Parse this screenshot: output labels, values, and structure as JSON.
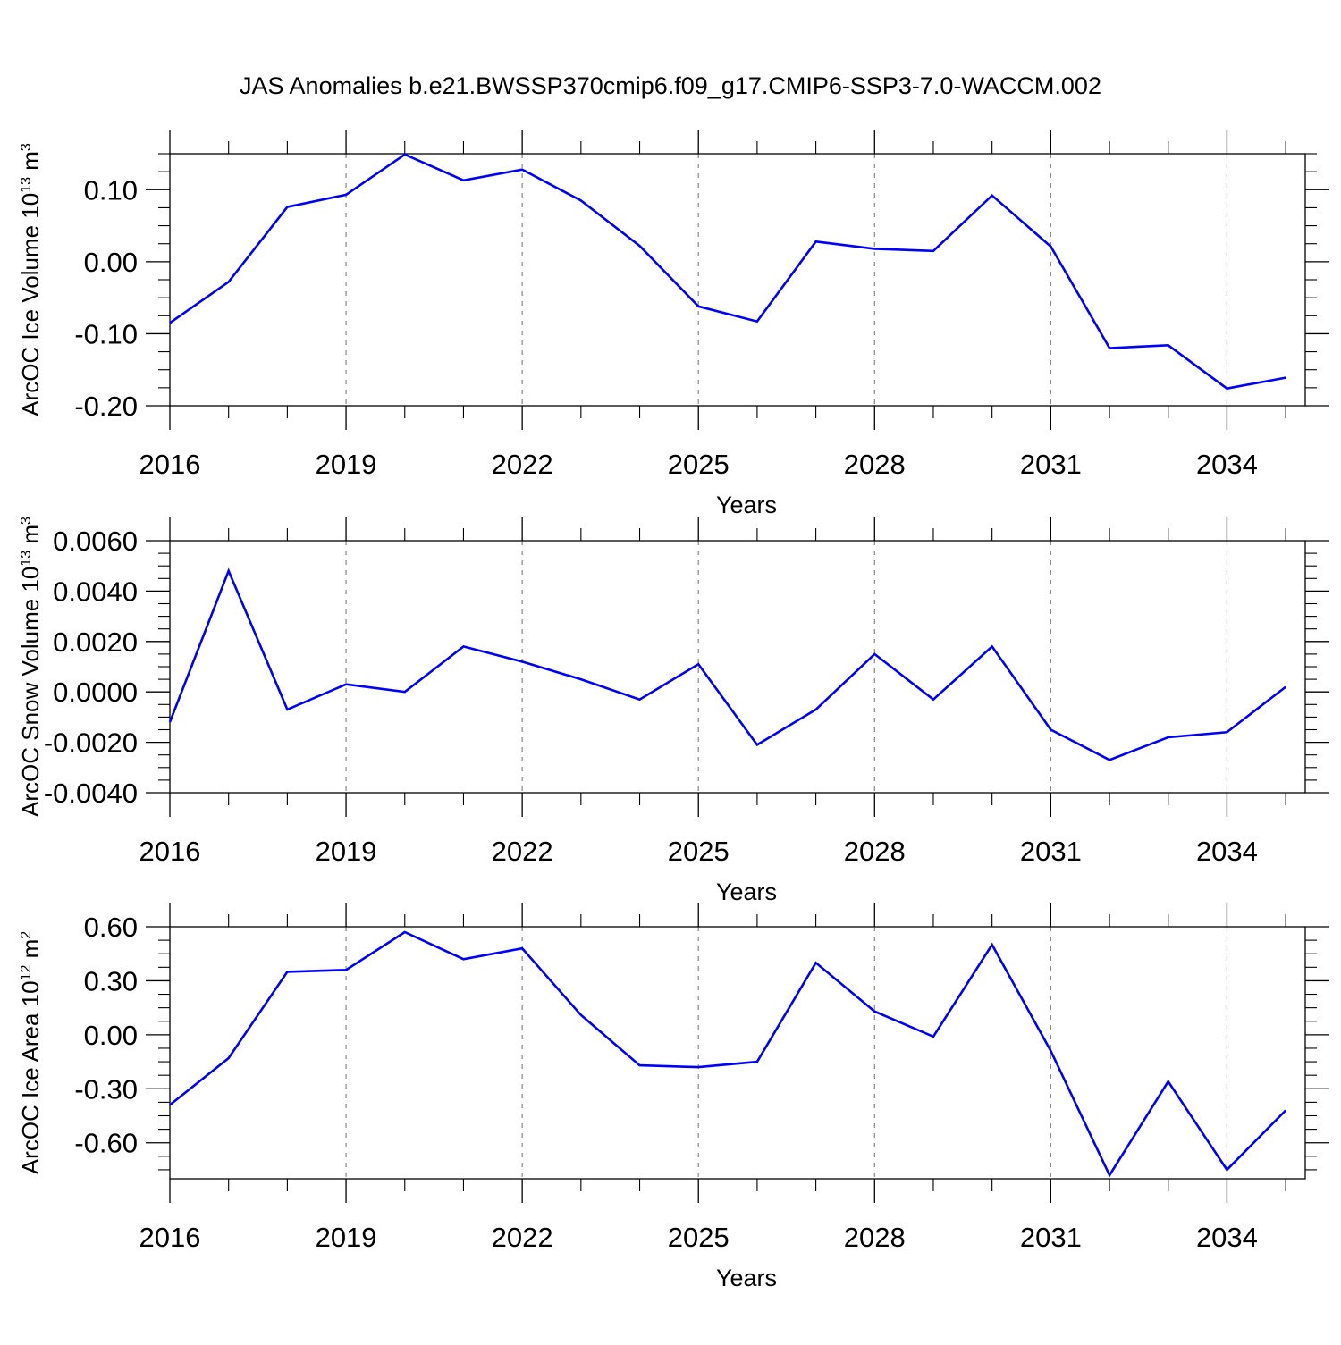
{
  "title": "JAS Anomalies b.e21.BWSSP370cmip6.f09_g17.CMIP6-SSP3-7.0-WACCM.002",
  "colors": {
    "line": "#0000ff",
    "axis": "#000000",
    "grid": "#888888"
  },
  "chart_data": [
    {
      "type": "line",
      "ylabel": {
        "main": "ArcOC Ice Volume 10",
        "exp": "13",
        "unit": " m",
        "unit_exp": "3"
      },
      "xlabel": "Years",
      "xlim": [
        2016,
        2035.333
      ],
      "ylim": [
        -0.2,
        0.15
      ],
      "xticks": [
        "2016",
        "2019",
        "2022",
        "2025",
        "2028",
        "2031",
        "2034"
      ],
      "yticks": [
        "0.10",
        "0.00",
        "-0.10",
        "-0.20"
      ],
      "grid": "vertical dashed at major x ticks",
      "series": [
        {
          "x": [
            2016,
            2017,
            2018,
            2019,
            2020,
            2021,
            2022,
            2023,
            2024,
            2025,
            2026,
            2027,
            2028,
            2029,
            2030,
            2031,
            2032,
            2033,
            2034,
            2035
          ],
          "y": [
            -0.085,
            -0.028,
            0.076,
            0.093,
            0.149,
            0.113,
            0.128,
            0.085,
            0.022,
            -0.062,
            -0.083,
            0.028,
            0.018,
            0.015,
            0.092,
            0.021,
            -0.12,
            -0.116,
            -0.176,
            -0.161
          ]
        }
      ]
    },
    {
      "type": "line",
      "ylabel": {
        "main": "ArcOC Snow Volume 10",
        "exp": "13",
        "unit": " m",
        "unit_exp": "3"
      },
      "xlabel": "Years",
      "xlim": [
        2016,
        2035.333
      ],
      "ylim": [
        -0.004,
        0.006
      ],
      "xticks": [
        "2016",
        "2019",
        "2022",
        "2025",
        "2028",
        "2031",
        "2034"
      ],
      "yticks": [
        "0.0060",
        "0.0040",
        "0.0020",
        "0.0000",
        "-0.0020",
        "-0.0040"
      ],
      "grid": "vertical dashed at major x ticks",
      "series": [
        {
          "x": [
            2016,
            2017,
            2018,
            2019,
            2020,
            2021,
            2022,
            2023,
            2024,
            2025,
            2026,
            2027,
            2028,
            2029,
            2030,
            2031,
            2032,
            2033,
            2034,
            2035
          ],
          "y": [
            -0.0012,
            0.0048,
            -0.0007,
            0.0003,
            0.0,
            0.0018,
            0.0012,
            0.0005,
            -0.0003,
            0.0011,
            -0.0021,
            -0.0007,
            0.0015,
            -0.0003,
            0.0018,
            -0.0015,
            -0.0027,
            -0.0018,
            -0.0016,
            0.0002
          ]
        }
      ]
    },
    {
      "type": "line",
      "ylabel": {
        "main": "ArcOC Ice Area 10",
        "exp": "12",
        "unit": " m",
        "unit_exp": "2"
      },
      "xlabel": "Years",
      "xlim": [
        2016,
        2035.333
      ],
      "ylim": [
        -0.8,
        0.6
      ],
      "xticks": [
        "2016",
        "2019",
        "2022",
        "2025",
        "2028",
        "2031",
        "2034"
      ],
      "yticks": [
        "0.60",
        "0.30",
        "0.00",
        "-0.30",
        "-0.60"
      ],
      "grid": "vertical dashed at major x ticks",
      "series": [
        {
          "x": [
            2016,
            2017,
            2018,
            2019,
            2020,
            2021,
            2022,
            2023,
            2024,
            2025,
            2026,
            2027,
            2028,
            2029,
            2030,
            2031,
            2032,
            2033,
            2034,
            2035
          ],
          "y": [
            -0.39,
            -0.13,
            0.35,
            0.36,
            0.57,
            0.42,
            0.48,
            0.11,
            -0.17,
            -0.18,
            -0.15,
            0.4,
            0.13,
            -0.01,
            0.5,
            -0.09,
            -0.78,
            -0.26,
            -0.75,
            -0.42
          ]
        }
      ]
    }
  ]
}
